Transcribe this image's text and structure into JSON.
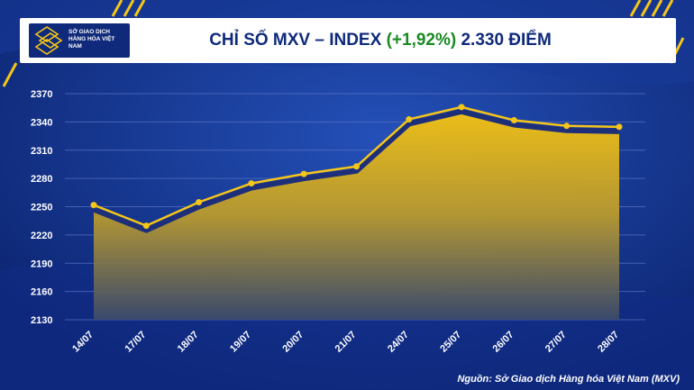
{
  "header": {
    "title_prefix": "CHỈ SỐ MXV – INDEX",
    "title_change": "(+1,92%)",
    "title_suffix": "2.330 ĐIỂM",
    "logo_text": "SỞ GIAO DỊCH HÀNG HÓA VIỆT NAM"
  },
  "source": "Nguồn: Sở Giao dịch Hàng hóa Việt Nam (MXV)",
  "colors": {
    "background": "#0f2a7a",
    "accent": "#f5c518",
    "line": "#1e2f7a",
    "positive": "#1a8a24"
  },
  "chart_data": {
    "type": "area",
    "title": "CHỈ SỐ MXV – INDEX (+1,92%) 2.330 ĐIỂM",
    "categories": [
      "14/07",
      "17/07",
      "18/07",
      "19/07",
      "20/07",
      "21/07",
      "24/07",
      "25/07",
      "26/07",
      "27/07",
      "28/07"
    ],
    "series": [
      {
        "name": "MXV-Index",
        "values": [
          2247,
          2225,
          2250,
          2270,
          2280,
          2288,
          2338,
          2351,
          2337,
          2331,
          2330
        ]
      }
    ],
    "yticks": [
      2130,
      2160,
      2190,
      2220,
      2250,
      2280,
      2310,
      2340,
      2370
    ],
    "ylim": [
      2130,
      2370
    ],
    "xlabel": "",
    "ylabel": "",
    "grid": true
  }
}
